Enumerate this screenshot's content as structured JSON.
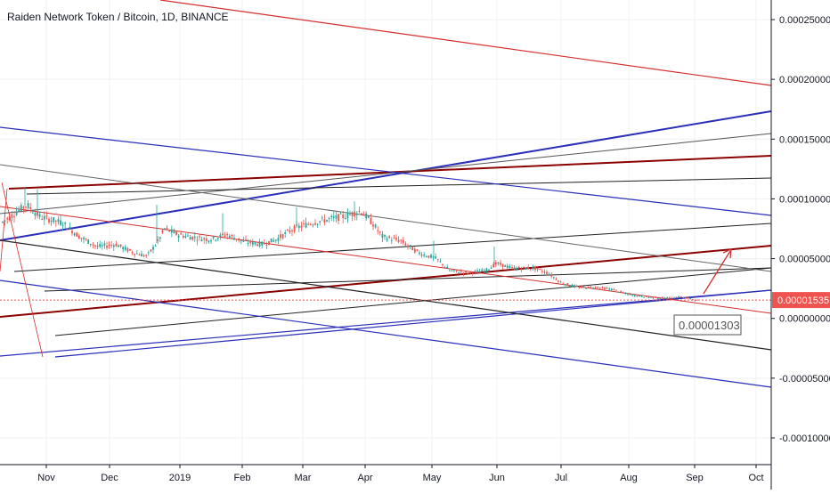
{
  "chart_data": {
    "type": "candlestick",
    "title": "Raiden Network Token / Bitcoin, 1D, BINANCE",
    "y_axis": {
      "ticks": [
        "0.00025000",
        "0.00020000",
        "0.00015000",
        "0.00010000",
        "0.00005000",
        "0.00000000",
        "-0.00005000",
        "-0.00010000"
      ],
      "tick_values": [
        0.00025,
        0.0002,
        0.00015,
        0.0001,
        5e-05,
        0,
        -5e-05,
        -0.0001
      ],
      "range": [
        -0.00013,
        0.00027
      ]
    },
    "x_axis": {
      "ticks": [
        "Nov",
        "Dec",
        "2019",
        "Feb",
        "Mar",
        "Apr",
        "May",
        "Jun",
        "Jul",
        "Aug",
        "Sep",
        "Oct"
      ]
    },
    "current_price": {
      "label": "0.00001535",
      "value": 1.535e-05,
      "color": "#ef5350"
    },
    "annotation": {
      "label": "0.00001303",
      "value": 1.303e-05
    },
    "trend_lines_colors": {
      "red": "#d32f2f",
      "blue": "#1a237e",
      "dark_red": "#8b0000",
      "gray": "#333333"
    },
    "grid": true
  }
}
